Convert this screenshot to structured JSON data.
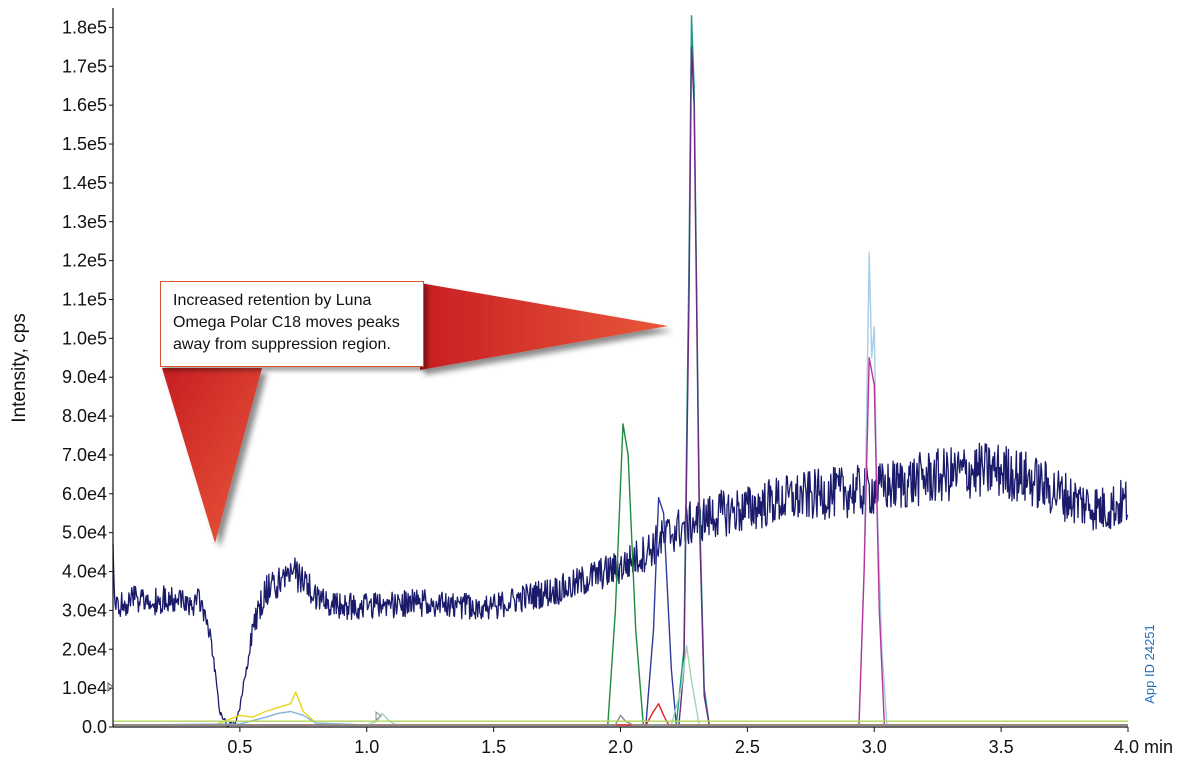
{
  "chart_data": {
    "type": "line",
    "xlabel": "",
    "ylabel": "Intensity, cps",
    "x_unit": "min",
    "xlim": [
      0.0,
      4.0
    ],
    "ylim": [
      0,
      185000
    ],
    "x_ticks": [
      0.5,
      1.0,
      1.5,
      2.0,
      2.5,
      3.0,
      3.5,
      4.0
    ],
    "x_tick_labels": [
      "0.5",
      "1.0",
      "1.5",
      "2.0",
      "2.5",
      "3.0",
      "3.5",
      "4.0 min"
    ],
    "y_ticks": [
      0,
      10000,
      20000,
      30000,
      40000,
      50000,
      60000,
      70000,
      80000,
      90000,
      100000,
      110000,
      120000,
      130000,
      140000,
      150000,
      160000,
      170000,
      180000
    ],
    "y_tick_labels": [
      "0.0",
      "1.0e4",
      "2.0e4",
      "3.0e4",
      "4.0e4",
      "5.0e4",
      "6.0e4",
      "7.0e4",
      "8.0e4",
      "9.0e4",
      "1.0e5",
      "1.1e5",
      "1.2e5",
      "1.3e5",
      "1.4e5",
      "1.5e5",
      "1.6e5",
      "1.7e5",
      "1.8e5"
    ],
    "grid": false,
    "legend": "none",
    "annotation": "Increased retention by Luna Omega Polar C18 moves peaks away from suppression region.",
    "watermark": "App ID 24251",
    "series": [
      {
        "color": "#1b1b6b",
        "role": "matrix-background",
        "x": [
          0.0,
          0.01,
          0.05,
          0.1,
          0.15,
          0.2,
          0.25,
          0.3,
          0.35,
          0.38,
          0.4,
          0.42,
          0.45,
          0.48,
          0.5,
          0.55,
          0.6,
          0.65,
          0.7,
          0.75,
          0.8,
          0.9,
          1.0,
          1.2,
          1.4,
          1.5,
          1.6,
          1.8,
          1.9,
          2.0,
          2.1,
          2.2,
          2.3,
          2.4,
          2.5,
          2.6,
          2.8,
          3.0,
          3.2,
          3.4,
          3.5,
          3.6,
          3.7,
          3.8,
          3.9,
          4.0
        ],
        "y": [
          45000,
          30000,
          32000,
          33000,
          32000,
          33000,
          33000,
          32000,
          32000,
          25000,
          16000,
          4000,
          500,
          1000,
          5000,
          25000,
          35000,
          37000,
          40000,
          38000,
          33000,
          31000,
          31000,
          32000,
          31000,
          31000,
          33000,
          36000,
          39000,
          41000,
          45000,
          50000,
          53000,
          55000,
          56000,
          58000,
          60000,
          61000,
          64000,
          66000,
          66000,
          64000,
          61000,
          58000,
          56000,
          58000
        ]
      },
      {
        "color": "#1e8a3c",
        "x": [
          0.0,
          1.95,
          1.98,
          2.01,
          2.03,
          2.06,
          2.09,
          4.0
        ],
        "y": [
          500,
          500,
          30000,
          78000,
          70000,
          25000,
          500,
          500
        ]
      },
      {
        "color": "#2e3a9c",
        "x": [
          0.0,
          2.1,
          2.13,
          2.15,
          2.17,
          2.2,
          2.22,
          4.0
        ],
        "y": [
          500,
          500,
          25000,
          59000,
          55000,
          15000,
          500,
          500
        ]
      },
      {
        "color": "#1a9a8a",
        "x": [
          0.0,
          2.22,
          2.25,
          2.27,
          2.28,
          2.29,
          2.31,
          2.33,
          2.35,
          4.0
        ],
        "y": [
          500,
          500,
          20000,
          120000,
          183000,
          165000,
          60000,
          10000,
          500,
          500
        ]
      },
      {
        "color": "#6a2a80",
        "x": [
          0.0,
          2.23,
          2.25,
          2.27,
          2.28,
          2.29,
          2.31,
          2.33,
          2.35,
          4.0
        ],
        "y": [
          500,
          500,
          15000,
          110000,
          175000,
          160000,
          55000,
          8000,
          500,
          500
        ]
      },
      {
        "color": "#a8cde4",
        "x": [
          0.0,
          2.94,
          2.96,
          2.98,
          2.99,
          3.0,
          3.01,
          3.03,
          3.05,
          4.0
        ],
        "y": [
          500,
          500,
          40000,
          122000,
          95000,
          103000,
          60000,
          20000,
          500,
          500
        ]
      },
      {
        "color": "#b5359b",
        "x": [
          0.0,
          2.94,
          2.96,
          2.98,
          3.0,
          3.02,
          3.04,
          4.0
        ],
        "y": [
          500,
          500,
          40000,
          95000,
          88000,
          30000,
          500,
          500
        ]
      },
      {
        "color": "#e8d51a",
        "x": [
          0.0,
          0.4,
          0.5,
          0.55,
          0.6,
          0.65,
          0.7,
          0.72,
          0.75,
          0.8,
          1.0,
          4.0
        ],
        "y": [
          500,
          500,
          3000,
          2500,
          4000,
          5000,
          6000,
          9000,
          4000,
          1000,
          500,
          500
        ]
      },
      {
        "color": "#7fb6d8",
        "x": [
          0.0,
          0.5,
          0.6,
          0.65,
          0.7,
          0.75,
          0.8,
          1.0,
          4.0
        ],
        "y": [
          500,
          800,
          2500,
          3500,
          4000,
          3000,
          1000,
          500,
          500
        ]
      },
      {
        "color": "#9fd6b0",
        "x": [
          0.0,
          1.0,
          1.04,
          1.06,
          1.09,
          1.12,
          2.2,
          2.24,
          2.26,
          2.28,
          2.31,
          4.0
        ],
        "y": [
          500,
          500,
          1500,
          3500,
          1500,
          500,
          500,
          10000,
          21000,
          12000,
          500,
          500
        ]
      },
      {
        "color": "#e02020",
        "x": [
          0.0,
          2.1,
          2.13,
          2.15,
          2.17,
          2.19,
          4.0
        ],
        "y": [
          500,
          500,
          4000,
          6000,
          3000,
          500,
          500
        ]
      },
      {
        "color": "#8a8a8a",
        "x": [
          0.0,
          1.98,
          2.0,
          2.02,
          2.05,
          4.0
        ],
        "y": [
          500,
          500,
          3000,
          1500,
          500,
          500
        ]
      },
      {
        "color": "#b4d45a",
        "x": [
          0.0,
          4.0
        ],
        "y": [
          1500,
          1500
        ]
      }
    ]
  }
}
